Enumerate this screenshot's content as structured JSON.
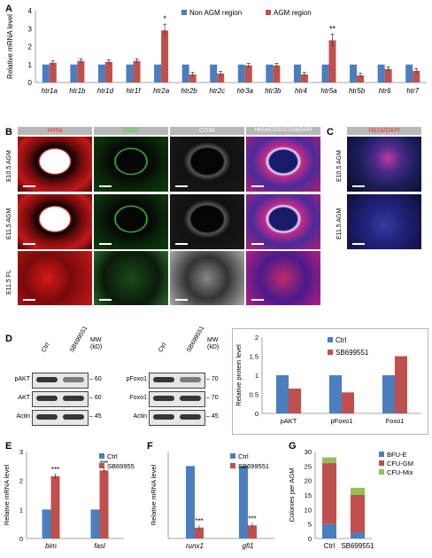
{
  "panels": {
    "A": "A",
    "B": "B",
    "C": "C",
    "D": "D",
    "E": "E",
    "F": "F",
    "G": "G"
  },
  "panelA": {
    "ylabel": "Relative mRNA level",
    "legend": [
      "Non AGM region",
      "AGM region"
    ],
    "colors": {
      "non": "#4a7ebf",
      "agm": "#c0504d"
    },
    "stars": {
      "htr2a": "*",
      "htr5a": "**"
    },
    "chart_data": {
      "type": "bar",
      "categories": [
        "htr1a",
        "htr1b",
        "htr1d",
        "htr1f",
        "htr2a",
        "htr2b",
        "htr2c",
        "htr3a",
        "htr3b",
        "htr4",
        "htr5a",
        "htr5b",
        "htr6",
        "htr7"
      ],
      "series": [
        {
          "name": "Non AGM region",
          "values": [
            1,
            1,
            1,
            1,
            1,
            1,
            1,
            1,
            1,
            1,
            1,
            1,
            1,
            1
          ]
        },
        {
          "name": "AGM region",
          "values": [
            1.1,
            1.2,
            1.15,
            1.2,
            2.9,
            0.45,
            0.5,
            0.95,
            0.95,
            0.45,
            2.35,
            0.4,
            0.75,
            0.65
          ]
        }
      ],
      "ylim": [
        0,
        4
      ],
      "yticks": [
        "0",
        "1",
        "2",
        "3",
        "4"
      ]
    }
  },
  "panelB": {
    "headers": [
      "Htr5a",
      "CD31",
      "CD34",
      "Htr5a/CD31/CD34/DAPI"
    ],
    "rows": [
      "E10.5 AGM",
      "E11.5 AGM",
      "E11.5 FL"
    ]
  },
  "panelC": {
    "header": "Htr2a/DAPI",
    "rows": [
      "E10.5 AGM",
      "E11.5 AGM"
    ]
  },
  "panelD": {
    "blot1": {
      "lanes": [
        "Ctrl",
        "SB699551"
      ],
      "rows": [
        "pAKT",
        "AKT",
        "Actin"
      ],
      "mw": [
        "60",
        "60",
        "45"
      ],
      "mw_label": "MW (kD)"
    },
    "blot2": {
      "lanes": [
        "Ctrl",
        "SB699551"
      ],
      "rows": [
        "pFoxo1",
        "Foxo1",
        "Actin"
      ],
      "mw": [
        "70",
        "70",
        "45"
      ],
      "mw_label": "MW (kD)"
    },
    "ylabel": "Relative protein level",
    "legend": [
      "Ctrl",
      "SB699551"
    ],
    "chart_data": {
      "type": "bar",
      "categories": [
        "pAKT",
        "pFoxo1",
        "Foxo1"
      ],
      "series": [
        {
          "name": "Ctrl",
          "values": [
            1,
            1,
            1
          ]
        },
        {
          "name": "SB699551",
          "values": [
            0.65,
            0.55,
            1.5
          ]
        }
      ],
      "ylim": [
        0,
        2
      ],
      "yticks": [
        "0",
        "0.5",
        "1",
        "1.5",
        "2"
      ]
    }
  },
  "panelE": {
    "ylabel": "Relative mRNA level",
    "legend": [
      "Ctrl",
      "SB69955"
    ],
    "stars": [
      "***",
      "***"
    ],
    "chart_data": {
      "type": "bar",
      "categories": [
        "bim",
        "fasl"
      ],
      "series": [
        {
          "name": "Ctrl",
          "values": [
            1,
            1
          ]
        },
        {
          "name": "SB69955",
          "values": [
            2.15,
            2.35
          ]
        }
      ],
      "ylim": [
        0,
        3
      ],
      "yticks": [
        "0",
        "1",
        "2",
        "3"
      ]
    }
  },
  "panelF": {
    "ylabel": "Relative mRNA level",
    "legend": [
      "Ctrl",
      "SB699551"
    ],
    "stars": [
      "***",
      "***"
    ],
    "chart_data": {
      "type": "bar",
      "categories": [
        "runx1",
        "gfi1"
      ],
      "series": [
        {
          "name": "Ctrl",
          "values": [
            1,
            1
          ]
        },
        {
          "name": "SB699551",
          "values": [
            0.15,
            0.18
          ]
        }
      ],
      "ylim": [
        0,
        1.2
      ]
    }
  },
  "panelG": {
    "ylabel": "Colonies per AGM",
    "legend": [
      "BFU-E",
      "CFU-GM",
      "CFU-Mix"
    ],
    "colors": {
      "bfue": "#4a7ebf",
      "cfugm": "#c0504d",
      "cfumix": "#9bbb59"
    },
    "chart_data": {
      "type": "bar",
      "categories": [
        "Ctrl",
        "SB699551"
      ],
      "series": [
        {
          "name": "BFU-E",
          "values": [
            5,
            2
          ]
        },
        {
          "name": "CFU-GM",
          "values": [
            21,
            13
          ]
        },
        {
          "name": "CFU-Mix",
          "values": [
            2,
            2.5
          ]
        }
      ],
      "ylim": [
        0,
        30
      ],
      "yticks": [
        "0",
        "5",
        "10",
        "15",
        "20",
        "25",
        "30"
      ]
    }
  }
}
